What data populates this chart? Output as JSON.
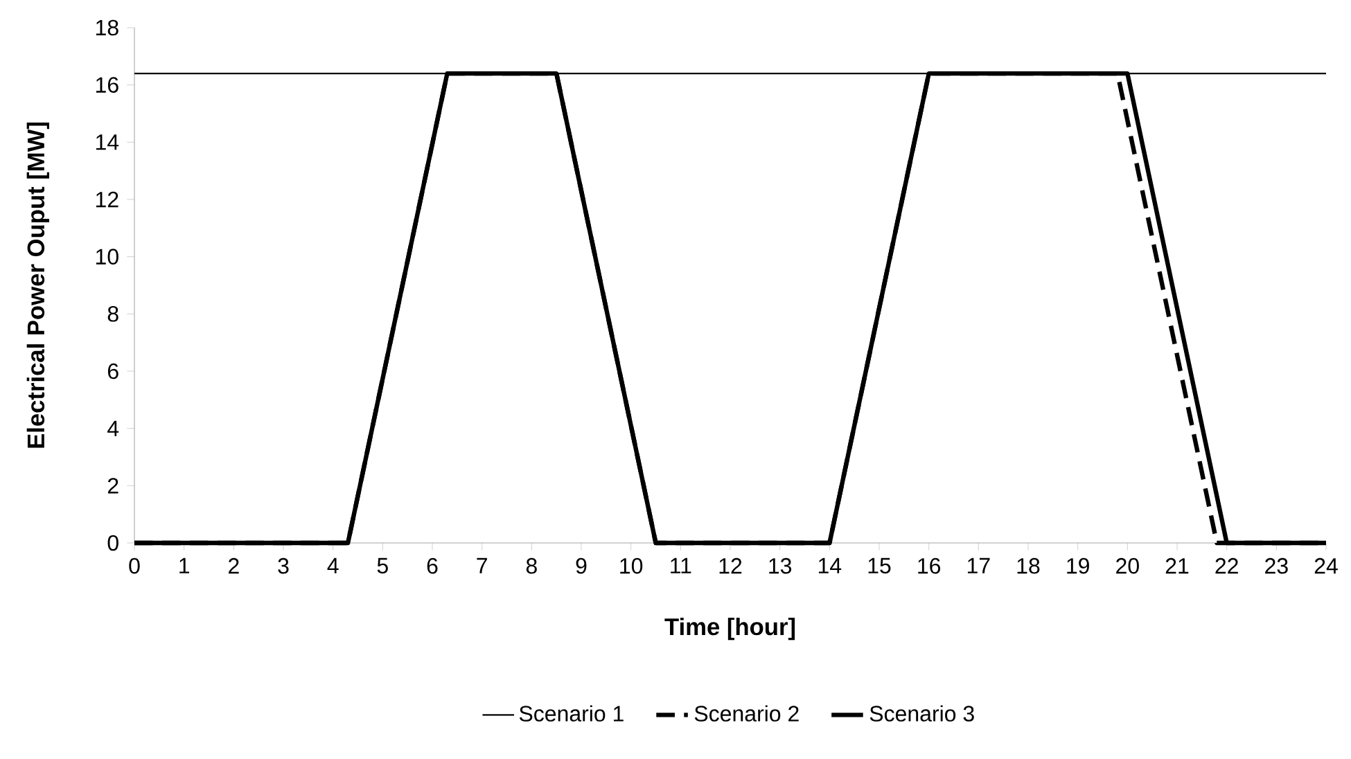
{
  "chart_data": {
    "type": "line",
    "xlabel": "Time [hour]",
    "ylabel": "Electrical Power Ouput [MW]",
    "xlim": [
      0,
      24
    ],
    "xticks": [
      0,
      1,
      2,
      3,
      4,
      5,
      6,
      7,
      8,
      9,
      10,
      11,
      12,
      13,
      14,
      15,
      16,
      17,
      18,
      19,
      20,
      21,
      22,
      23,
      24
    ],
    "ylim": [
      0,
      18
    ],
    "yticks": [
      0,
      2,
      4,
      6,
      8,
      10,
      12,
      14,
      16,
      18
    ],
    "grid": false,
    "legend": "bottom",
    "marker": "none",
    "series": [
      {
        "name": "Scenario 1",
        "color": "#000000",
        "line_style": "solid",
        "x": [
          0,
          24
        ],
        "values": [
          16.4,
          16.4
        ]
      },
      {
        "name": "Scenario 2",
        "color": "#000000",
        "line_style": "dashed",
        "x": [
          0,
          4.3,
          6.3,
          8.5,
          10.5,
          14,
          16,
          19.8,
          21.8,
          24
        ],
        "values": [
          0,
          0,
          16.4,
          16.4,
          0,
          0,
          16.4,
          16.4,
          0,
          0
        ]
      },
      {
        "name": "Scenario 3",
        "color": "#000000",
        "line_style": "solid",
        "x": [
          0,
          4.3,
          6.3,
          8.5,
          10.5,
          14,
          16,
          20,
          22,
          24
        ],
        "values": [
          0,
          0,
          16.4,
          16.4,
          0,
          0,
          16.4,
          16.4,
          0,
          0
        ]
      }
    ]
  }
}
